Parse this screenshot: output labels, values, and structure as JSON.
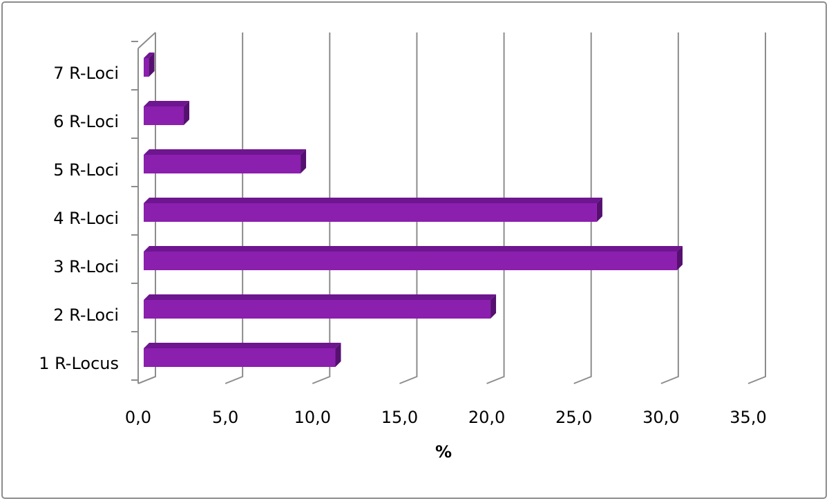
{
  "chart_data": {
    "type": "bar3d_horizontal",
    "categories": [
      "1 R-Locus",
      "2 R-Loci",
      "3 R-Loci",
      "4 R-Loci",
      "5 R-Loci",
      "6 R-Loci",
      "7 R-Loci"
    ],
    "values": [
      11.0,
      19.9,
      30.6,
      26.0,
      9.0,
      2.3,
      0.3
    ],
    "color": "#8b1fae",
    "xlabel": "%",
    "xlim": [
      0,
      35
    ],
    "xticks": [
      {
        "value": 0,
        "label": "0,0"
      },
      {
        "value": 5,
        "label": "5,0"
      },
      {
        "value": 10,
        "label": "10,0"
      },
      {
        "value": 15,
        "label": "15,0"
      },
      {
        "value": 20,
        "label": "20,0"
      },
      {
        "value": 25,
        "label": "25,0"
      },
      {
        "value": 30,
        "label": "30,0"
      },
      {
        "value": 35,
        "label": "35,0"
      }
    ],
    "grid": true
  }
}
